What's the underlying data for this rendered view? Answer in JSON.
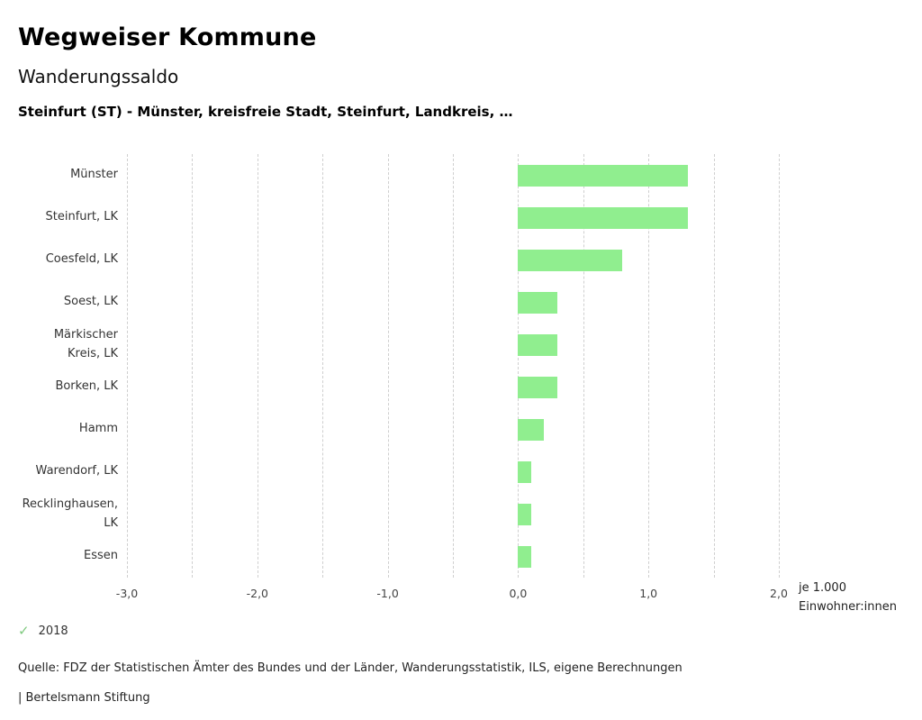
{
  "header": {
    "title": "Wegweiser Kommune",
    "subtitle": "Wanderungssaldo",
    "description": "Steinfurt (ST) - Münster, kreisfreie Stadt, Steinfurt, Landkreis, …"
  },
  "chart_data": {
    "type": "bar",
    "orientation": "horizontal",
    "title": "Wanderungssaldo",
    "categories": [
      "Münster",
      "Steinfurt, LK",
      "Coesfeld, LK",
      "Soest, LK",
      "Märkischer Kreis, LK",
      "Borken, LK",
      "Hamm",
      "Warendorf, LK",
      "Recklinghausen, LK",
      "Essen"
    ],
    "series": [
      {
        "name": "2018",
        "values": [
          1.3,
          1.3,
          0.8,
          0.3,
          0.3,
          0.3,
          0.2,
          0.1,
          0.1,
          0.1
        ]
      }
    ],
    "xlim": [
      -3.0,
      2.0
    ],
    "x_ticks": [
      "-3,0",
      "-2,0",
      "-1,0",
      "0,0",
      "1,0",
      "2,0"
    ],
    "x_tick_values": [
      -3,
      -2,
      -1,
      0,
      1,
      2
    ],
    "grid_values": [
      -3,
      -2.5,
      -2,
      -1.5,
      -1,
      -0.5,
      0,
      0.5,
      1,
      1.5,
      2
    ],
    "grid": "dashed-vertical",
    "legend_position": "bottom-left",
    "bar_color": "#90ee8f",
    "unit_label_line1": "je 1.000",
    "unit_label_line2": "Einwohner:innen"
  },
  "legend": {
    "check_icon": "✓",
    "year": "2018"
  },
  "footer": {
    "source": "Quelle: FDZ der Statistischen Ämter des Bundes und der Länder, Wanderungsstatistik, ILS, eigene Berechnungen",
    "brand": "| Bertelsmann Stiftung"
  },
  "colors": {
    "bar": "#90ee8f",
    "check": "#7ec97e",
    "gridline": "#cfcfcf"
  }
}
